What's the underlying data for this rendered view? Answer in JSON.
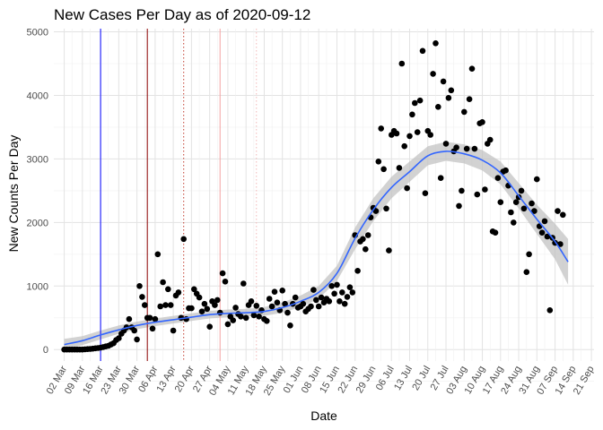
{
  "chart_data": {
    "type": "scatter",
    "title": "New Cases Per Day as of 2020-09-12",
    "xlabel": "Date",
    "ylabel": "New Counts Per Day",
    "x_start": "2020-03-02",
    "x_range": [
      "2020-02-27",
      "2020-09-22"
    ],
    "ylim": [
      -180,
      5050
    ],
    "y_ticks": [
      0,
      1000,
      2000,
      3000,
      4000,
      5000
    ],
    "x_ticks": [
      "02 Mar",
      "09 Mar",
      "16 Mar",
      "23 Mar",
      "30 Mar",
      "06 Apr",
      "13 Apr",
      "20 Apr",
      "27 Apr",
      "04 May",
      "11 May",
      "18 May",
      "25 May",
      "01 Jun",
      "08 Jun",
      "15 Jun",
      "22 Jun",
      "29 Jun",
      "06 Jul",
      "13 Jul",
      "20 Jul",
      "27 Jul",
      "03 Aug",
      "10 Aug",
      "17 Aug",
      "24 Aug",
      "31 Aug",
      "07 Sep",
      "14 Sep",
      "21 Sep"
    ],
    "grid": true,
    "colors": {
      "points": "#000000",
      "smooth": "#3366ff",
      "band": "#bfbfbf"
    },
    "vlines": [
      {
        "date": "2020-03-16",
        "color": "#0000ff",
        "style": "solid"
      },
      {
        "date": "2020-04-03",
        "color": "#8b0000",
        "style": "solid"
      },
      {
        "date": "2020-04-17",
        "color": "#c0392b",
        "style": "dotted"
      },
      {
        "date": "2020-05-01",
        "color": "#f2a3a3",
        "style": "solid"
      },
      {
        "date": "2020-05-15",
        "color": "#f2b8b8",
        "style": "dotted"
      }
    ],
    "series": [
      {
        "type": "points",
        "points": [
          [
            "2020-03-02",
            0
          ],
          [
            "2020-03-03",
            0
          ],
          [
            "2020-03-04",
            0
          ],
          [
            "2020-03-05",
            0
          ],
          [
            "2020-03-06",
            0
          ],
          [
            "2020-03-07",
            0
          ],
          [
            "2020-03-08",
            0
          ],
          [
            "2020-03-09",
            0
          ],
          [
            "2020-03-10",
            5
          ],
          [
            "2020-03-11",
            8
          ],
          [
            "2020-03-12",
            10
          ],
          [
            "2020-03-13",
            15
          ],
          [
            "2020-03-14",
            20
          ],
          [
            "2020-03-15",
            25
          ],
          [
            "2020-03-16",
            30
          ],
          [
            "2020-03-17",
            40
          ],
          [
            "2020-03-18",
            50
          ],
          [
            "2020-03-19",
            60
          ],
          [
            "2020-03-20",
            80
          ],
          [
            "2020-03-21",
            100
          ],
          [
            "2020-03-22",
            150
          ],
          [
            "2020-03-23",
            180
          ],
          [
            "2020-03-24",
            250
          ],
          [
            "2020-03-25",
            300
          ],
          [
            "2020-03-26",
            350
          ],
          [
            "2020-03-27",
            480
          ],
          [
            "2020-03-28",
            350
          ],
          [
            "2020-03-29",
            300
          ],
          [
            "2020-03-30",
            160
          ],
          [
            "2020-03-31",
            1000
          ],
          [
            "2020-04-01",
            830
          ],
          [
            "2020-04-02",
            700
          ],
          [
            "2020-04-03",
            500
          ],
          [
            "2020-04-04",
            500
          ],
          [
            "2020-04-05",
            330
          ],
          [
            "2020-04-06",
            480
          ],
          [
            "2020-04-07",
            1500
          ],
          [
            "2020-04-08",
            680
          ],
          [
            "2020-04-09",
            1060
          ],
          [
            "2020-04-10",
            700
          ],
          [
            "2020-04-11",
            950
          ],
          [
            "2020-04-12",
            700
          ],
          [
            "2020-04-13",
            300
          ],
          [
            "2020-04-14",
            850
          ],
          [
            "2020-04-15",
            900
          ],
          [
            "2020-04-16",
            500
          ],
          [
            "2020-04-17",
            1740
          ],
          [
            "2020-04-18",
            480
          ],
          [
            "2020-04-19",
            650
          ],
          [
            "2020-04-20",
            650
          ],
          [
            "2020-04-21",
            950
          ],
          [
            "2020-04-22",
            880
          ],
          [
            "2020-04-23",
            820
          ],
          [
            "2020-04-24",
            600
          ],
          [
            "2020-04-25",
            720
          ],
          [
            "2020-04-26",
            640
          ],
          [
            "2020-04-27",
            360
          ],
          [
            "2020-04-28",
            760
          ],
          [
            "2020-04-29",
            700
          ],
          [
            "2020-04-30",
            780
          ],
          [
            "2020-05-01",
            580
          ],
          [
            "2020-05-02",
            1200
          ],
          [
            "2020-05-03",
            1070
          ],
          [
            "2020-05-04",
            400
          ],
          [
            "2020-05-05",
            520
          ],
          [
            "2020-05-06",
            460
          ],
          [
            "2020-05-07",
            660
          ],
          [
            "2020-05-08",
            560
          ],
          [
            "2020-05-09",
            520
          ],
          [
            "2020-05-10",
            1040
          ],
          [
            "2020-05-11",
            500
          ],
          [
            "2020-05-12",
            700
          ],
          [
            "2020-05-13",
            760
          ],
          [
            "2020-05-14",
            540
          ],
          [
            "2020-05-15",
            690
          ],
          [
            "2020-05-16",
            520
          ],
          [
            "2020-05-17",
            620
          ],
          [
            "2020-05-18",
            480
          ],
          [
            "2020-05-19",
            450
          ],
          [
            "2020-05-20",
            800
          ],
          [
            "2020-05-21",
            680
          ],
          [
            "2020-05-22",
            910
          ],
          [
            "2020-05-23",
            740
          ],
          [
            "2020-05-24",
            620
          ],
          [
            "2020-05-25",
            930
          ],
          [
            "2020-05-26",
            720
          ],
          [
            "2020-05-27",
            580
          ],
          [
            "2020-05-28",
            380
          ],
          [
            "2020-05-29",
            720
          ],
          [
            "2020-05-30",
            820
          ],
          [
            "2020-05-31",
            660
          ],
          [
            "2020-06-01",
            680
          ],
          [
            "2020-06-02",
            720
          ],
          [
            "2020-06-03",
            600
          ],
          [
            "2020-06-04",
            640
          ],
          [
            "2020-06-05",
            680
          ],
          [
            "2020-06-06",
            940
          ],
          [
            "2020-06-07",
            780
          ],
          [
            "2020-06-08",
            680
          ],
          [
            "2020-06-09",
            820
          ],
          [
            "2020-06-10",
            740
          ],
          [
            "2020-06-11",
            800
          ],
          [
            "2020-06-12",
            760
          ],
          [
            "2020-06-13",
            1000
          ],
          [
            "2020-06-14",
            880
          ],
          [
            "2020-06-15",
            1020
          ],
          [
            "2020-06-16",
            760
          ],
          [
            "2020-06-17",
            900
          ],
          [
            "2020-06-18",
            720
          ],
          [
            "2020-06-19",
            830
          ],
          [
            "2020-06-20",
            980
          ],
          [
            "2020-06-21",
            900
          ],
          [
            "2020-06-22",
            1800
          ],
          [
            "2020-06-23",
            1240
          ],
          [
            "2020-06-24",
            1700
          ],
          [
            "2020-06-25",
            1740
          ],
          [
            "2020-06-26",
            1580
          ],
          [
            "2020-06-27",
            1800
          ],
          [
            "2020-06-28",
            2080
          ],
          [
            "2020-06-29",
            2230
          ],
          [
            "2020-06-30",
            2180
          ],
          [
            "2020-07-01",
            2960
          ],
          [
            "2020-07-02",
            3480
          ],
          [
            "2020-07-03",
            2840
          ],
          [
            "2020-07-04",
            2220
          ],
          [
            "2020-07-05",
            1560
          ],
          [
            "2020-07-06",
            3380
          ],
          [
            "2020-07-07",
            3440
          ],
          [
            "2020-07-08",
            3400
          ],
          [
            "2020-07-09",
            2860
          ],
          [
            "2020-07-10",
            4500
          ],
          [
            "2020-07-11",
            3200
          ],
          [
            "2020-07-12",
            2540
          ],
          [
            "2020-07-13",
            3360
          ],
          [
            "2020-07-14",
            3700
          ],
          [
            "2020-07-15",
            3880
          ],
          [
            "2020-07-16",
            3420
          ],
          [
            "2020-07-17",
            3920
          ],
          [
            "2020-07-18",
            4700
          ],
          [
            "2020-07-19",
            2460
          ],
          [
            "2020-07-20",
            3440
          ],
          [
            "2020-07-21",
            3380
          ],
          [
            "2020-07-22",
            4340
          ],
          [
            "2020-07-23",
            4820
          ],
          [
            "2020-07-24",
            3820
          ],
          [
            "2020-07-25",
            2700
          ],
          [
            "2020-07-26",
            4220
          ],
          [
            "2020-07-27",
            3240
          ],
          [
            "2020-07-28",
            3960
          ],
          [
            "2020-07-29",
            4080
          ],
          [
            "2020-07-30",
            3120
          ],
          [
            "2020-07-31",
            3180
          ],
          [
            "2020-08-01",
            2260
          ],
          [
            "2020-08-02",
            2500
          ],
          [
            "2020-08-03",
            3740
          ],
          [
            "2020-08-04",
            3160
          ],
          [
            "2020-08-05",
            3940
          ],
          [
            "2020-08-06",
            4420
          ],
          [
            "2020-08-07",
            3160
          ],
          [
            "2020-08-08",
            2440
          ],
          [
            "2020-08-09",
            3560
          ],
          [
            "2020-08-10",
            3580
          ],
          [
            "2020-08-11",
            2520
          ],
          [
            "2020-08-12",
            3240
          ],
          [
            "2020-08-13",
            3300
          ],
          [
            "2020-08-14",
            1860
          ],
          [
            "2020-08-15",
            1840
          ],
          [
            "2020-08-16",
            2700
          ],
          [
            "2020-08-17",
            2320
          ],
          [
            "2020-08-18",
            2800
          ],
          [
            "2020-08-19",
            2820
          ],
          [
            "2020-08-20",
            2580
          ],
          [
            "2020-08-21",
            2160
          ],
          [
            "2020-08-22",
            2000
          ],
          [
            "2020-08-23",
            2320
          ],
          [
            "2020-08-24",
            2400
          ],
          [
            "2020-08-25",
            2500
          ],
          [
            "2020-08-26",
            2220
          ],
          [
            "2020-08-27",
            1220
          ],
          [
            "2020-08-28",
            1500
          ],
          [
            "2020-08-29",
            2300
          ],
          [
            "2020-08-30",
            2180
          ],
          [
            "2020-08-31",
            2680
          ],
          [
            "2020-09-01",
            1940
          ],
          [
            "2020-09-02",
            1840
          ],
          [
            "2020-09-03",
            2020
          ],
          [
            "2020-09-04",
            1780
          ],
          [
            "2020-09-05",
            620
          ],
          [
            "2020-09-06",
            1760
          ],
          [
            "2020-09-07",
            1680
          ],
          [
            "2020-09-08",
            2180
          ],
          [
            "2020-09-09",
            1660
          ],
          [
            "2020-09-10",
            2120
          ]
        ]
      },
      {
        "type": "smooth",
        "points": [
          [
            "2020-03-02",
            80
          ],
          [
            "2020-03-09",
            140
          ],
          [
            "2020-03-16",
            230
          ],
          [
            "2020-03-23",
            310
          ],
          [
            "2020-03-30",
            380
          ],
          [
            "2020-04-06",
            430
          ],
          [
            "2020-04-13",
            470
          ],
          [
            "2020-04-20",
            510
          ],
          [
            "2020-04-27",
            550
          ],
          [
            "2020-05-04",
            570
          ],
          [
            "2020-05-11",
            580
          ],
          [
            "2020-05-18",
            600
          ],
          [
            "2020-05-25",
            660
          ],
          [
            "2020-06-01",
            760
          ],
          [
            "2020-06-08",
            900
          ],
          [
            "2020-06-15",
            1200
          ],
          [
            "2020-06-22",
            1750
          ],
          [
            "2020-06-29",
            2200
          ],
          [
            "2020-07-06",
            2550
          ],
          [
            "2020-07-13",
            2800
          ],
          [
            "2020-07-20",
            3050
          ],
          [
            "2020-07-27",
            3120
          ],
          [
            "2020-08-03",
            3080
          ],
          [
            "2020-08-10",
            2980
          ],
          [
            "2020-08-17",
            2780
          ],
          [
            "2020-08-24",
            2420
          ],
          [
            "2020-08-31",
            2050
          ],
          [
            "2020-09-07",
            1700
          ],
          [
            "2020-09-12",
            1380
          ]
        ],
        "band": [
          [
            "2020-03-02",
            -10,
            170
          ],
          [
            "2020-03-09",
            70,
            210
          ],
          [
            "2020-03-16",
            160,
            300
          ],
          [
            "2020-03-23",
            250,
            380
          ],
          [
            "2020-03-30",
            320,
            440
          ],
          [
            "2020-04-06",
            370,
            490
          ],
          [
            "2020-04-13",
            410,
            530
          ],
          [
            "2020-04-20",
            450,
            570
          ],
          [
            "2020-04-27",
            490,
            610
          ],
          [
            "2020-05-04",
            510,
            630
          ],
          [
            "2020-05-11",
            520,
            640
          ],
          [
            "2020-05-18",
            530,
            670
          ],
          [
            "2020-05-25",
            580,
            740
          ],
          [
            "2020-06-01",
            670,
            850
          ],
          [
            "2020-06-08",
            800,
            1000
          ],
          [
            "2020-06-15",
            1080,
            1320
          ],
          [
            "2020-06-22",
            1580,
            1920
          ],
          [
            "2020-06-29",
            2020,
            2380
          ],
          [
            "2020-07-06",
            2380,
            2720
          ],
          [
            "2020-07-13",
            2640,
            2960
          ],
          [
            "2020-07-20",
            2900,
            3200
          ],
          [
            "2020-07-27",
            2970,
            3270
          ],
          [
            "2020-08-03",
            2930,
            3230
          ],
          [
            "2020-08-10",
            2820,
            3140
          ],
          [
            "2020-08-17",
            2600,
            2960
          ],
          [
            "2020-08-24",
            2220,
            2620
          ],
          [
            "2020-08-31",
            1820,
            2280
          ],
          [
            "2020-09-07",
            1420,
            1980
          ],
          [
            "2020-09-12",
            1020,
            1740
          ]
        ]
      }
    ]
  }
}
